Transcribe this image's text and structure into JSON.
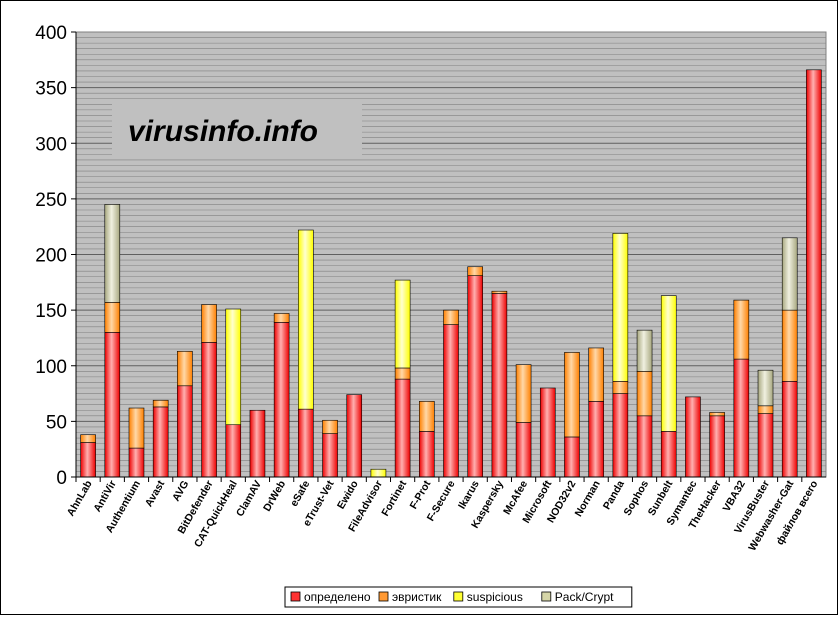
{
  "chart_data": {
    "type": "bar",
    "stacked": true,
    "watermark": "virusinfo.info",
    "categories": [
      "AhnLab",
      "AntiVir",
      "Authentium",
      "Avast",
      "AVG",
      "BitDefender",
      "CAT-QuickHeal",
      "ClamAV",
      "DrWeb",
      "eSafe",
      "eTrust-Vet",
      "Ewido",
      "FileAdvisor",
      "Fortinet",
      "F-Prot",
      "F-Secure",
      "Ikarus",
      "Kaspersky",
      "McAfee",
      "Microsoft",
      "NOD32v2",
      "Norman",
      "Panda",
      "Sophos",
      "Sunbelt",
      "Symantec",
      "TheHacker",
      "VBA32",
      "VirusBuster",
      "Webwasher-Gat",
      "файлов всего"
    ],
    "series": [
      {
        "name": "определено",
        "color": "#ff3333",
        "values": [
          31,
          130,
          26,
          63,
          82,
          121,
          47,
          60,
          139,
          61,
          39,
          74,
          0,
          88,
          41,
          137,
          181,
          165,
          49,
          80,
          36,
          68,
          75,
          55,
          41,
          72,
          55,
          106,
          57,
          86,
          366
        ]
      },
      {
        "name": "эвристик",
        "color": "#ff9933",
        "values": [
          7,
          27,
          36,
          6,
          31,
          34,
          0,
          0,
          8,
          0,
          12,
          0,
          0,
          10,
          27,
          13,
          8,
          2,
          52,
          0,
          76,
          48,
          11,
          40,
          0,
          0,
          3,
          53,
          7,
          64,
          0
        ]
      },
      {
        "name": "suspicious",
        "color": "#ffff33",
        "values": [
          0,
          0,
          0,
          0,
          0,
          0,
          104,
          0,
          0,
          161,
          0,
          0,
          7,
          79,
          0,
          0,
          0,
          0,
          0,
          0,
          0,
          0,
          133,
          0,
          122,
          0,
          0,
          0,
          0,
          0,
          0
        ]
      },
      {
        "name": "Pack/Crypt",
        "color": "#d6d6a8",
        "values": [
          0,
          88,
          0,
          0,
          0,
          0,
          0,
          0,
          0,
          0,
          0,
          0,
          0,
          0,
          0,
          0,
          0,
          0,
          0,
          0,
          0,
          0,
          0,
          37,
          0,
          0,
          0,
          0,
          32,
          65,
          0
        ]
      }
    ],
    "yaxis": {
      "min": 0,
      "max": 400,
      "ticks": [
        "0",
        "50",
        "100",
        "150",
        "200",
        "250",
        "300",
        "350",
        "400"
      ]
    },
    "grid": true,
    "legend_position": "bottom-center"
  }
}
